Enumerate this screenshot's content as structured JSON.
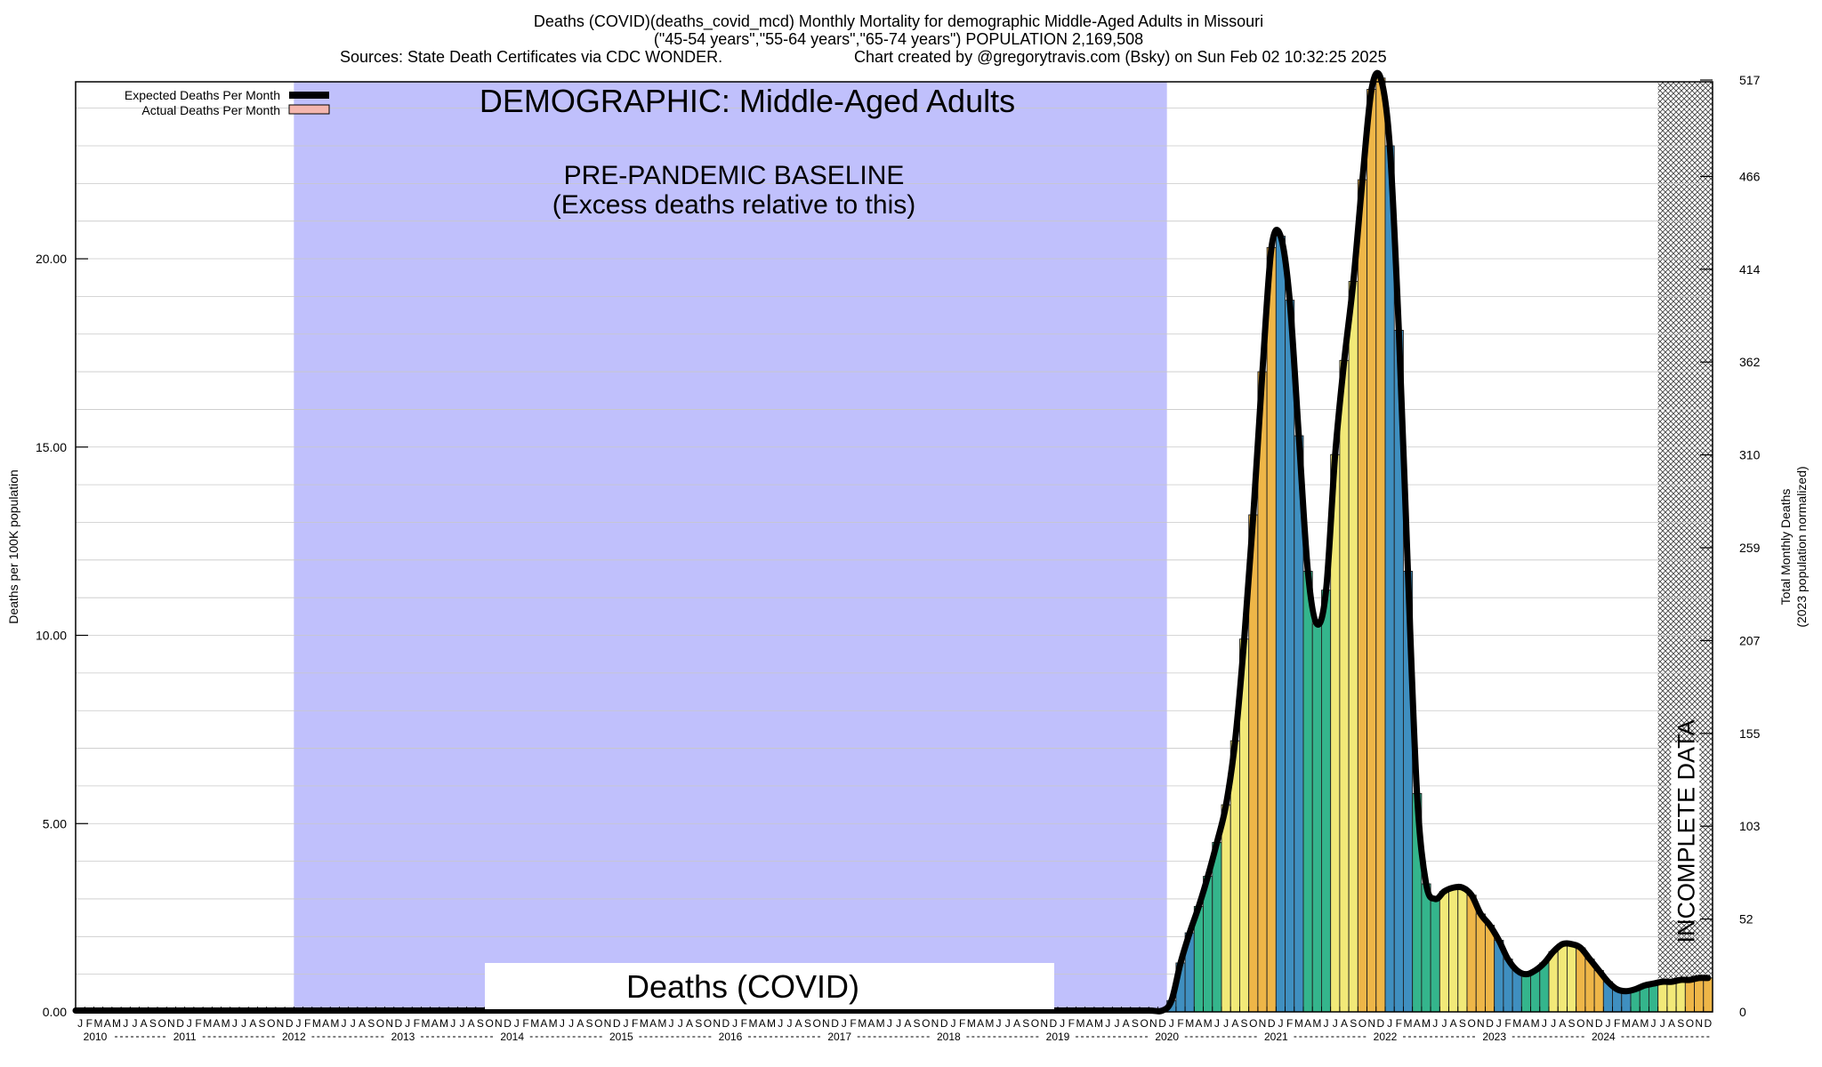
{
  "header": {
    "title_line1": "Deaths (COVID)(deaths_covid_mcd) Monthly Mortality for demographic Middle-Aged Adults in Missouri",
    "title_line2": "(\"45-54 years\",\"55-64 years\",\"65-74 years\") POPULATION 2,169,508",
    "sources": "Sources: State Death Certificates via CDC WONDER.",
    "credit": "Chart created by @gregorytravis.com (Bsky) on Sun Feb 02 10:32:25 2025"
  },
  "annotations": {
    "demographic": "DEMOGRAPHIC: Middle-Aged Adults",
    "baseline_line1": "PRE-PANDEMIC BASELINE",
    "baseline_line2": "(Excess deaths relative to this)",
    "incomplete": "INCOMPLETE DATA",
    "cause_box": "Deaths (COVID)"
  },
  "legend": {
    "expected_label": "Expected Deaths Per Month",
    "actual_label": "Actual Deaths Per Month"
  },
  "axes": {
    "y_left_label": "Deaths per 100K population",
    "y_right_label_line1": "Total Monthly Deaths",
    "y_right_label_line2": "(2023 population normalized)"
  },
  "colors": {
    "baseline_band": "#c0c0fc",
    "bar_blue": "#3f8fc0",
    "bar_teal": "#34b58c",
    "bar_yellow": "#f2e978",
    "bar_orange": "#eeb648",
    "expected_line": "#000000",
    "actual_legend_swatch": "#f4b6ae",
    "grid": "#c8c8c8"
  },
  "chart_data": {
    "type": "bar",
    "x_start": "2010-01",
    "x_end": "2024-12",
    "months_per_year_labels": [
      "J",
      "F",
      "M",
      "A",
      "M",
      "J",
      "J",
      "A",
      "S",
      "O",
      "N",
      "D"
    ],
    "years": [
      "2010",
      "2011",
      "2012",
      "2013",
      "2014",
      "2015",
      "2016",
      "2017",
      "2018",
      "2019",
      "2020",
      "2021",
      "2022",
      "2023",
      "2024"
    ],
    "ylim": [
      0,
      24.7
    ],
    "y_ticks": [
      "0.00",
      "5.00",
      "10.00",
      "15.00",
      "20.00"
    ],
    "y_tick_values": [
      0,
      5,
      10,
      15,
      20
    ],
    "y2_ticks": [
      "0",
      "52",
      "103",
      "155",
      "207",
      "259",
      "310",
      "362",
      "414",
      "466",
      "517"
    ],
    "baseline_period": [
      "2012-01",
      "2019-12"
    ],
    "incomplete_period": [
      "2024-07",
      "2024-12"
    ],
    "series": [
      {
        "name": "Actual Deaths Per Month",
        "start": "2020-01",
        "values": [
          0.3,
          1.3,
          2.1,
          2.8,
          3.6,
          4.5,
          5.5,
          7.2,
          9.9,
          13.2,
          17.0,
          20.3,
          20.6,
          18.9,
          15.3,
          11.7,
          10.3,
          11.2,
          14.8,
          17.3,
          19.4,
          22.1,
          24.5,
          24.8,
          23.0,
          18.1,
          11.7,
          5.8,
          3.4,
          3.0,
          3.2,
          3.3,
          3.3,
          3.1,
          2.6,
          2.3,
          1.9,
          1.4,
          1.1,
          1.0,
          1.1,
          1.3,
          1.6,
          1.8,
          1.8,
          1.7,
          1.4,
          1.1,
          0.8,
          0.6,
          0.55,
          0.6,
          0.7,
          0.75,
          0.8,
          0.8,
          0.85,
          0.85,
          0.9,
          0.9
        ]
      }
    ]
  }
}
